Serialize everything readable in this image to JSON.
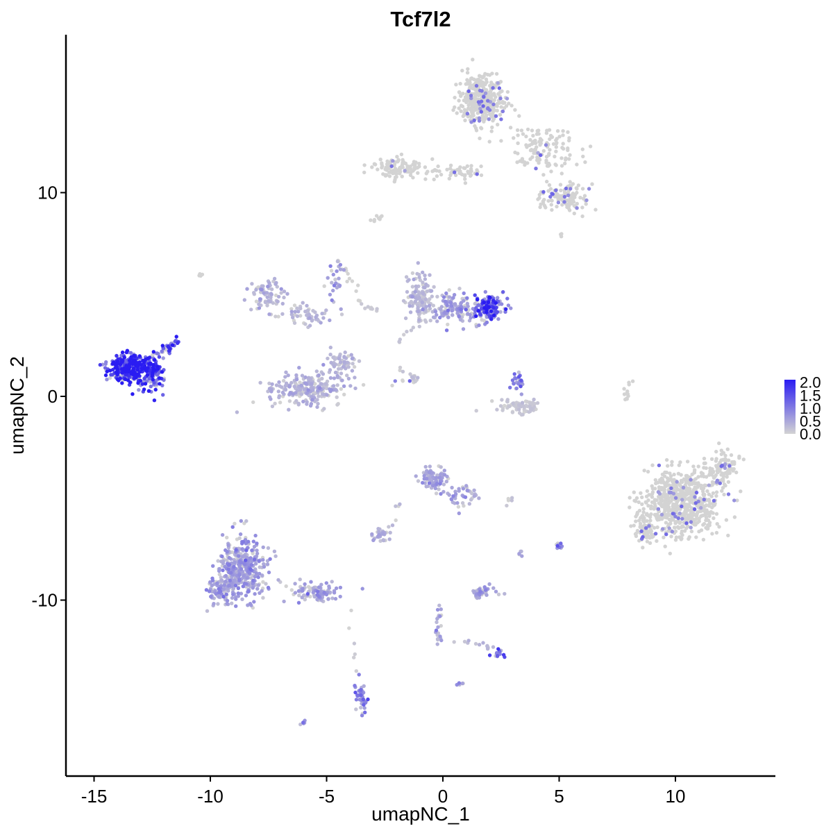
{
  "chart_data": {
    "type": "scatter",
    "title": "Tcf7l2",
    "xlabel": "umapNC_1",
    "ylabel": "umapNC_2",
    "xlim": [
      -16.5,
      14.5
    ],
    "ylim": [
      -18.5,
      17.5
    ],
    "x_ticks": [
      -15,
      -10,
      -5,
      0,
      5,
      10
    ],
    "x_tick_labels": [
      "-15",
      "-10",
      "-5",
      "0",
      "5",
      "10"
    ],
    "y_ticks": [
      -10,
      0,
      10
    ],
    "y_tick_labels": [
      "-10",
      "0",
      "10"
    ],
    "grid": false,
    "legend_placement": "right",
    "color_scale": {
      "low": "#d3d3d3",
      "high": "#2a1cf2",
      "min": 0,
      "max": 2.1,
      "ticks": [
        0.0,
        0.5,
        1.0,
        1.5,
        2.0
      ],
      "tick_labels": [
        "0.0",
        "0.5",
        "1.0",
        "1.5",
        "2.0"
      ]
    },
    "clusters": [
      {
        "cx": 1.7,
        "cy": 14.6,
        "sx": 0.8,
        "sy": 1.0,
        "n": 380,
        "expr": 0.05
      },
      {
        "cx": 4.3,
        "cy": 12.2,
        "sx": 1.4,
        "sy": 0.9,
        "n": 120,
        "expr": 0.03
      },
      {
        "cx": 5.2,
        "cy": 9.8,
        "sx": 0.9,
        "sy": 0.6,
        "n": 110,
        "expr": 0.05
      },
      {
        "cx": -2.0,
        "cy": 11.2,
        "sx": 1.0,
        "sy": 0.4,
        "n": 110,
        "expr": 0.02
      },
      {
        "cx": 0.5,
        "cy": 11.0,
        "sx": 1.1,
        "sy": 0.35,
        "n": 50,
        "expr": 0.02
      },
      {
        "cx": -7.6,
        "cy": 5.0,
        "sx": 0.6,
        "sy": 0.6,
        "n": 70,
        "expr": 0.35
      },
      {
        "cx": -6.0,
        "cy": 4.0,
        "sx": 0.9,
        "sy": 0.5,
        "n": 50,
        "expr": 0.3
      },
      {
        "cx": -4.6,
        "cy": 5.6,
        "sx": 0.3,
        "sy": 1.3,
        "n": 25,
        "expr": 0.45
      },
      {
        "cx": -5.8,
        "cy": 0.4,
        "sx": 1.3,
        "sy": 0.7,
        "n": 230,
        "expr": 0.35
      },
      {
        "cx": -4.3,
        "cy": 1.6,
        "sx": 0.5,
        "sy": 0.5,
        "n": 60,
        "expr": 0.3
      },
      {
        "cx": -1.0,
        "cy": 4.8,
        "sx": 0.5,
        "sy": 1.0,
        "n": 110,
        "expr": 0.3
      },
      {
        "cx": 0.6,
        "cy": 4.3,
        "sx": 1.0,
        "sy": 0.6,
        "n": 140,
        "expr": 0.55
      },
      {
        "cx": 2.0,
        "cy": 4.3,
        "sx": 0.5,
        "sy": 0.5,
        "n": 140,
        "expr": 1.3
      },
      {
        "cx": 3.3,
        "cy": -0.5,
        "sx": 0.8,
        "sy": 0.35,
        "n": 70,
        "expr": 0.15
      },
      {
        "cx": 3.2,
        "cy": 0.7,
        "sx": 0.25,
        "sy": 0.5,
        "n": 25,
        "expr": 0.9
      },
      {
        "cx": -13.4,
        "cy": 1.4,
        "sx": 0.8,
        "sy": 0.6,
        "n": 330,
        "expr": 1.7
      },
      {
        "cx": -12.4,
        "cy": 0.9,
        "sx": 0.4,
        "sy": 0.7,
        "n": 70,
        "expr": 1.4
      },
      {
        "cx": -11.8,
        "cy": 2.4,
        "sx": 0.3,
        "sy": 0.3,
        "n": 20,
        "expr": 1.2
      },
      {
        "cx": 10.3,
        "cy": -5.2,
        "sx": 1.4,
        "sy": 1.3,
        "n": 650,
        "expr": 0.03
      },
      {
        "cx": 8.7,
        "cy": -6.5,
        "sx": 0.4,
        "sy": 0.6,
        "n": 70,
        "expr": 0.05
      },
      {
        "cx": 12.0,
        "cy": -3.6,
        "sx": 0.6,
        "sy": 0.7,
        "n": 90,
        "expr": 0.04
      },
      {
        "cx": -8.6,
        "cy": -8.5,
        "sx": 0.9,
        "sy": 1.2,
        "n": 380,
        "expr": 0.55
      },
      {
        "cx": -9.5,
        "cy": -9.5,
        "sx": 0.5,
        "sy": 0.5,
        "n": 80,
        "expr": 0.55
      },
      {
        "cx": -5.5,
        "cy": -9.6,
        "sx": 0.9,
        "sy": 0.35,
        "n": 90,
        "expr": 0.6
      },
      {
        "cx": -3.5,
        "cy": -14.8,
        "sx": 0.2,
        "sy": 0.7,
        "n": 45,
        "expr": 0.8
      },
      {
        "cx": -0.4,
        "cy": -4.0,
        "sx": 0.5,
        "sy": 0.7,
        "n": 80,
        "expr": 0.5
      },
      {
        "cx": 0.8,
        "cy": -4.9,
        "sx": 0.6,
        "sy": 0.5,
        "n": 40,
        "expr": 0.45
      },
      {
        "cx": -2.7,
        "cy": -6.8,
        "sx": 0.3,
        "sy": 0.25,
        "n": 30,
        "expr": 0.35
      },
      {
        "cx": 1.7,
        "cy": -9.6,
        "sx": 0.45,
        "sy": 0.25,
        "n": 45,
        "expr": 0.55
      },
      {
        "cx": 2.4,
        "cy": -12.6,
        "sx": 0.2,
        "sy": 0.2,
        "n": 14,
        "expr": 1.0
      },
      {
        "cx": 5.0,
        "cy": -7.3,
        "sx": 0.15,
        "sy": 0.2,
        "n": 10,
        "expr": 0.9
      }
    ],
    "segments": [
      {
        "x1": -11.4,
        "y1": 2.8,
        "x2": -12.8,
        "y2": 1.6,
        "n": 25,
        "expr": 1.3
      },
      {
        "x1": -4.5,
        "y1": 6.8,
        "x2": -3.5,
        "y2": 4.5,
        "n": 14,
        "expr": 0.05
      },
      {
        "x1": -3.7,
        "y1": 4.5,
        "x2": -2.8,
        "y2": 4.2,
        "n": 8,
        "expr": 0.1
      },
      {
        "x1": -2.2,
        "y1": 0.6,
        "x2": -1.3,
        "y2": 0.8,
        "n": 8,
        "expr": 0.05
      },
      {
        "x1": -1.8,
        "y1": 1.3,
        "x2": -1.0,
        "y2": 0.8,
        "n": 12,
        "expr": 0.2
      },
      {
        "x1": -2.0,
        "y1": 2.6,
        "x2": -0.6,
        "y2": 4.0,
        "n": 12,
        "expr": 0.15
      },
      {
        "x1": 8.0,
        "y1": 0.9,
        "x2": 7.8,
        "y2": -0.4,
        "n": 12,
        "expr": 0.0
      },
      {
        "x1": -3.1,
        "y1": 8.6,
        "x2": -2.5,
        "y2": 8.9,
        "n": 8,
        "expr": 0.0
      },
      {
        "x1": -0.1,
        "y1": -10.0,
        "x2": -0.2,
        "y2": -12.0,
        "n": 22,
        "expr": 0.5
      },
      {
        "x1": 0.5,
        "y1": -11.9,
        "x2": 2.4,
        "y2": -12.4,
        "n": 14,
        "expr": 0.25
      },
      {
        "x1": -4.0,
        "y1": -10.5,
        "x2": -3.8,
        "y2": -13.5,
        "n": 6,
        "expr": 0.1
      },
      {
        "x1": -2.5,
        "y1": -7.0,
        "x2": -1.8,
        "y2": -5.0,
        "n": 8,
        "expr": 0.3
      },
      {
        "x1": 2.6,
        "y1": -5.3,
        "x2": 3.0,
        "y2": -5.0,
        "n": 5,
        "expr": 0.3
      },
      {
        "x1": 3.2,
        "y1": -8.0,
        "x2": 3.4,
        "y2": -7.6,
        "n": 5,
        "expr": 0.3
      },
      {
        "x1": -6.2,
        "y1": -16.2,
        "x2": -5.9,
        "y2": -16.0,
        "n": 5,
        "expr": 0.8
      },
      {
        "x1": 0.5,
        "y1": -14.0,
        "x2": 0.8,
        "y2": -14.1,
        "n": 5,
        "expr": 0.7
      },
      {
        "x1": -10.5,
        "y1": 6.1,
        "x2": -10.4,
        "y2": 5.9,
        "n": 4,
        "expr": 0.0
      },
      {
        "x1": 5.0,
        "y1": 8.0,
        "x2": 5.2,
        "y2": 7.9,
        "n": 3,
        "expr": 0.0
      }
    ]
  }
}
